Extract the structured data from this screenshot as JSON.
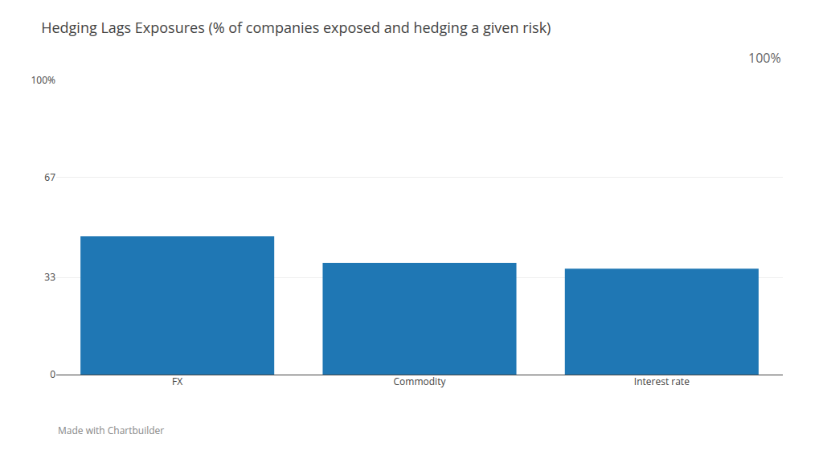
{
  "chart_data": {
    "type": "bar",
    "title": "Hedging Lags Exposures (% of companies exposed and hedging a given risk)",
    "categories": [
      "FX",
      "Commodity",
      "Interest rate"
    ],
    "values": [
      47,
      38,
      36
    ],
    "ylim": [
      0,
      100
    ],
    "yticks": [
      0,
      33,
      67,
      {
        "value": 100,
        "label": "100%"
      }
    ],
    "grid": true,
    "annotations": [
      "100%",
      "Made with Chartbuilder"
    ]
  }
}
